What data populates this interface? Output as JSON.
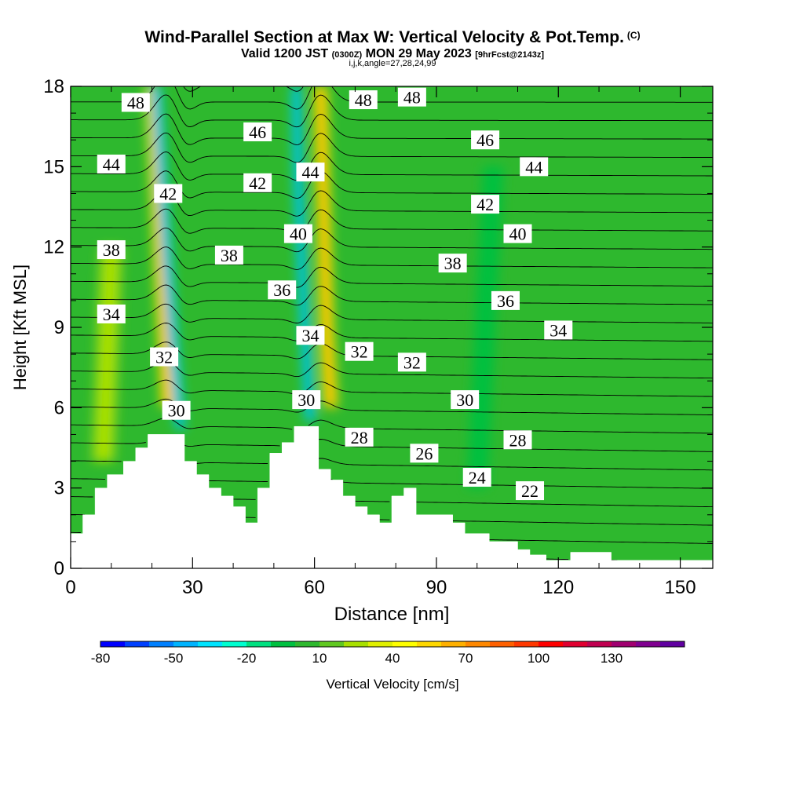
{
  "header": {
    "title": "Wind-Parallel Section at Max W: Vertical Velocity & Pot.Temp.",
    "title_mark": "(C)",
    "valid_prefix": "Valid 1200 JST",
    "valid_utc": "(0300Z)",
    "valid_date": "MON 29 May 2023",
    "forecast_info": "[9hrFcst@2143z]",
    "indices": "i,j,k,angle=27,28,24,99"
  },
  "chart_data": {
    "type": "heatmap",
    "xlabel": "Distance [nm]",
    "ylabel": "Height [Kft MSL]",
    "xlim": [
      0,
      158
    ],
    "ylim": [
      0,
      18
    ],
    "x_ticks": [
      0,
      30,
      60,
      90,
      120,
      150
    ],
    "y_ticks": [
      0,
      3,
      6,
      9,
      12,
      15,
      18
    ],
    "x_minor_step": 10,
    "y_minor_step": 1,
    "terrain": {
      "x": [
        0,
        3,
        3,
        6,
        6,
        9,
        9,
        13,
        13,
        16,
        16,
        19,
        19,
        28,
        28,
        31,
        31,
        34,
        34,
        37,
        37,
        40,
        40,
        43,
        43,
        46,
        46,
        49,
        49,
        52,
        52,
        55,
        55,
        61,
        61,
        64,
        64,
        67,
        67,
        70,
        70,
        73,
        73,
        76,
        76,
        79,
        79,
        82,
        82,
        85,
        85,
        94,
        94,
        97,
        97,
        103,
        103,
        110,
        110,
        113,
        113,
        117,
        117,
        120,
        120,
        123,
        123,
        133,
        133,
        143,
        143,
        158
      ],
      "height": [
        1.3,
        1.3,
        2.0,
        2.0,
        3.0,
        3.0,
        3.5,
        3.5,
        4.0,
        4.0,
        4.5,
        4.5,
        5.0,
        5.0,
        4.0,
        4.0,
        3.5,
        3.5,
        3.0,
        3.0,
        2.7,
        2.7,
        2.3,
        2.3,
        1.7,
        1.7,
        3.0,
        3.0,
        4.3,
        4.3,
        4.7,
        4.7,
        5.3,
        5.3,
        3.7,
        3.7,
        3.3,
        3.3,
        2.7,
        2.7,
        2.3,
        2.3,
        2.0,
        2.0,
        1.7,
        1.7,
        2.7,
        2.7,
        3.0,
        3.0,
        2.0,
        2.0,
        1.7,
        1.7,
        1.3,
        1.3,
        1.0,
        1.0,
        0.7,
        0.7,
        0.5,
        0.5,
        0.3,
        0.3,
        0.3,
        0.3,
        0.6,
        0.6,
        0.3,
        0.3,
        0.3,
        0.3
      ]
    },
    "field_base_color": "#2eb82e",
    "velocity_features": [
      {
        "kind": "updraft",
        "x": [
          24,
          23,
          22,
          21,
          20
        ],
        "y": [
          6,
          9,
          12,
          15,
          18
        ],
        "width_nm": 3.5,
        "peak_cm_s": 60
      },
      {
        "kind": "downdraft",
        "x": [
          27,
          25.5,
          24,
          22.5,
          21
        ],
        "y": [
          5.2,
          8,
          11,
          14.5,
          18
        ],
        "width_nm": 2.5,
        "peak_cm_s": -60
      },
      {
        "kind": "updraft",
        "x": [
          64,
          63,
          62.5,
          62,
          61.5
        ],
        "y": [
          6,
          9,
          12,
          15,
          18
        ],
        "width_nm": 3.5,
        "peak_cm_s": 60
      },
      {
        "kind": "downdraft",
        "x": [
          59,
          58,
          57,
          56,
          55.5
        ],
        "y": [
          5.5,
          8,
          11,
          14.5,
          18
        ],
        "width_nm": 2.5,
        "peak_cm_s": -60
      },
      {
        "kind": "weak_up",
        "x": [
          8,
          9,
          10
        ],
        "y": [
          4,
          8,
          12
        ],
        "width_nm": 6,
        "peak_cm_s": 20
      },
      {
        "kind": "weak_down",
        "x": [
          100,
          102,
          104
        ],
        "y": [
          3,
          9,
          15
        ],
        "width_nm": 5,
        "peak_cm_s": -15
      }
    ],
    "theta_contours": {
      "levels": [
        22,
        23,
        24,
        25,
        26,
        27,
        28,
        29,
        30,
        31,
        32,
        33,
        34,
        35,
        36,
        37,
        38,
        39,
        40,
        41,
        42,
        43,
        44,
        45,
        46,
        47,
        48,
        49
      ],
      "labels": [
        {
          "text": "48",
          "x": 16,
          "y": 17.4
        },
        {
          "text": "46",
          "x": 46,
          "y": 16.3
        },
        {
          "text": "48",
          "x": 72,
          "y": 17.5
        },
        {
          "text": "48",
          "x": 84,
          "y": 17.6
        },
        {
          "text": "46",
          "x": 102,
          "y": 16.0
        },
        {
          "text": "44",
          "x": 10,
          "y": 15.1
        },
        {
          "text": "42",
          "x": 24,
          "y": 14.0
        },
        {
          "text": "42",
          "x": 46,
          "y": 14.4
        },
        {
          "text": "44",
          "x": 59,
          "y": 14.8
        },
        {
          "text": "44",
          "x": 114,
          "y": 15.0
        },
        {
          "text": "42",
          "x": 102,
          "y": 13.6
        },
        {
          "text": "40",
          "x": 56,
          "y": 12.5
        },
        {
          "text": "40",
          "x": 110,
          "y": 12.5
        },
        {
          "text": "38",
          "x": 10,
          "y": 11.9
        },
        {
          "text": "38",
          "x": 39,
          "y": 11.7
        },
        {
          "text": "38",
          "x": 94,
          "y": 11.4
        },
        {
          "text": "36",
          "x": 52,
          "y": 10.4
        },
        {
          "text": "36",
          "x": 107,
          "y": 10.0
        },
        {
          "text": "34",
          "x": 10,
          "y": 9.5
        },
        {
          "text": "34",
          "x": 59,
          "y": 8.7
        },
        {
          "text": "34",
          "x": 120,
          "y": 8.9
        },
        {
          "text": "32",
          "x": 23,
          "y": 7.9
        },
        {
          "text": "32",
          "x": 71,
          "y": 8.1
        },
        {
          "text": "32",
          "x": 84,
          "y": 7.7
        },
        {
          "text": "30",
          "x": 26,
          "y": 5.9
        },
        {
          "text": "30",
          "x": 58,
          "y": 6.3
        },
        {
          "text": "30",
          "x": 97,
          "y": 6.3
        },
        {
          "text": "28",
          "x": 71,
          "y": 4.9
        },
        {
          "text": "28",
          "x": 110,
          "y": 4.8
        },
        {
          "text": "26",
          "x": 87,
          "y": 4.3
        },
        {
          "text": "24",
          "x": 100,
          "y": 3.4
        },
        {
          "text": "22",
          "x": 113,
          "y": 2.9
        }
      ]
    },
    "colorbar": {
      "label": "Vertical Velocity [cm/s]",
      "colors": [
        "#0000ff",
        "#0040ff",
        "#0080ff",
        "#00b4ff",
        "#00e4ff",
        "#00ffd0",
        "#00e080",
        "#00c040",
        "#2eb82e",
        "#60c820",
        "#a8e000",
        "#e0f000",
        "#ffff00",
        "#ffd800",
        "#ffb000",
        "#ff8800",
        "#ff6000",
        "#ff3800",
        "#ff0000",
        "#e00030",
        "#c00050",
        "#a00070",
        "#800090",
        "#6000a0"
      ],
      "tick_labels": [
        "-80",
        "-50",
        "-20",
        "10",
        "40",
        "70",
        "100",
        "130"
      ],
      "tick_positions": [
        0,
        3,
        6,
        9,
        12,
        15,
        18,
        21
      ]
    }
  }
}
